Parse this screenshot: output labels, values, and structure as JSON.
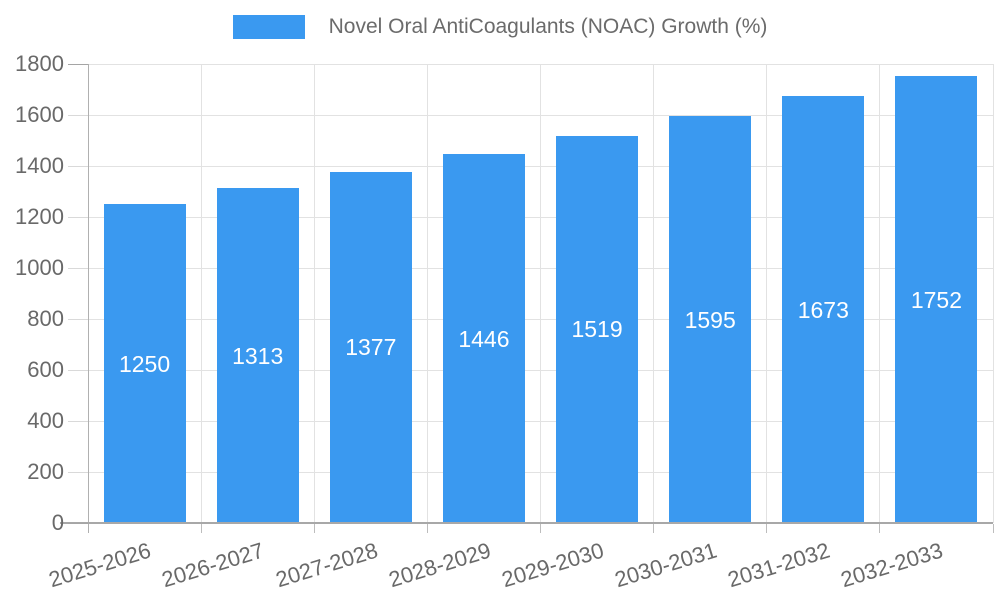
{
  "chart_data": {
    "type": "bar",
    "title": "",
    "legend": {
      "position": "top",
      "entries": [
        "Novel Oral AntiCoagulants (NOAC) Growth (%)"
      ]
    },
    "categories": [
      "2025-2026",
      "2026-2027",
      "2027-2028",
      "2028-2029",
      "2029-2030",
      "2030-2031",
      "2031-2032",
      "2032-2033"
    ],
    "series": [
      {
        "name": "Novel Oral AntiCoagulants (NOAC) Growth (%)",
        "values": [
          1250,
          1313,
          1377,
          1446,
          1519,
          1595,
          1673,
          1752
        ]
      }
    ],
    "bar_labels": [
      "1250",
      "1313",
      "1377",
      "1446",
      "1519",
      "1595",
      "1673",
      "1752"
    ],
    "xlabel": "",
    "ylabel": "",
    "ylim": [
      0,
      1800
    ],
    "ytick_step": 200,
    "ytick_labels": [
      "0",
      "200",
      "400",
      "600",
      "800",
      "1000",
      "1200",
      "1400",
      "1600",
      "1800"
    ],
    "grid": true,
    "colors": {
      "bar": "#3A99F0",
      "bar_label_text": "#ffffff",
      "axis_text": "#696969",
      "legend_text": "#6b6b6b",
      "gridline": "#e2e2e2",
      "axis_line": "#b0b0b0"
    }
  }
}
